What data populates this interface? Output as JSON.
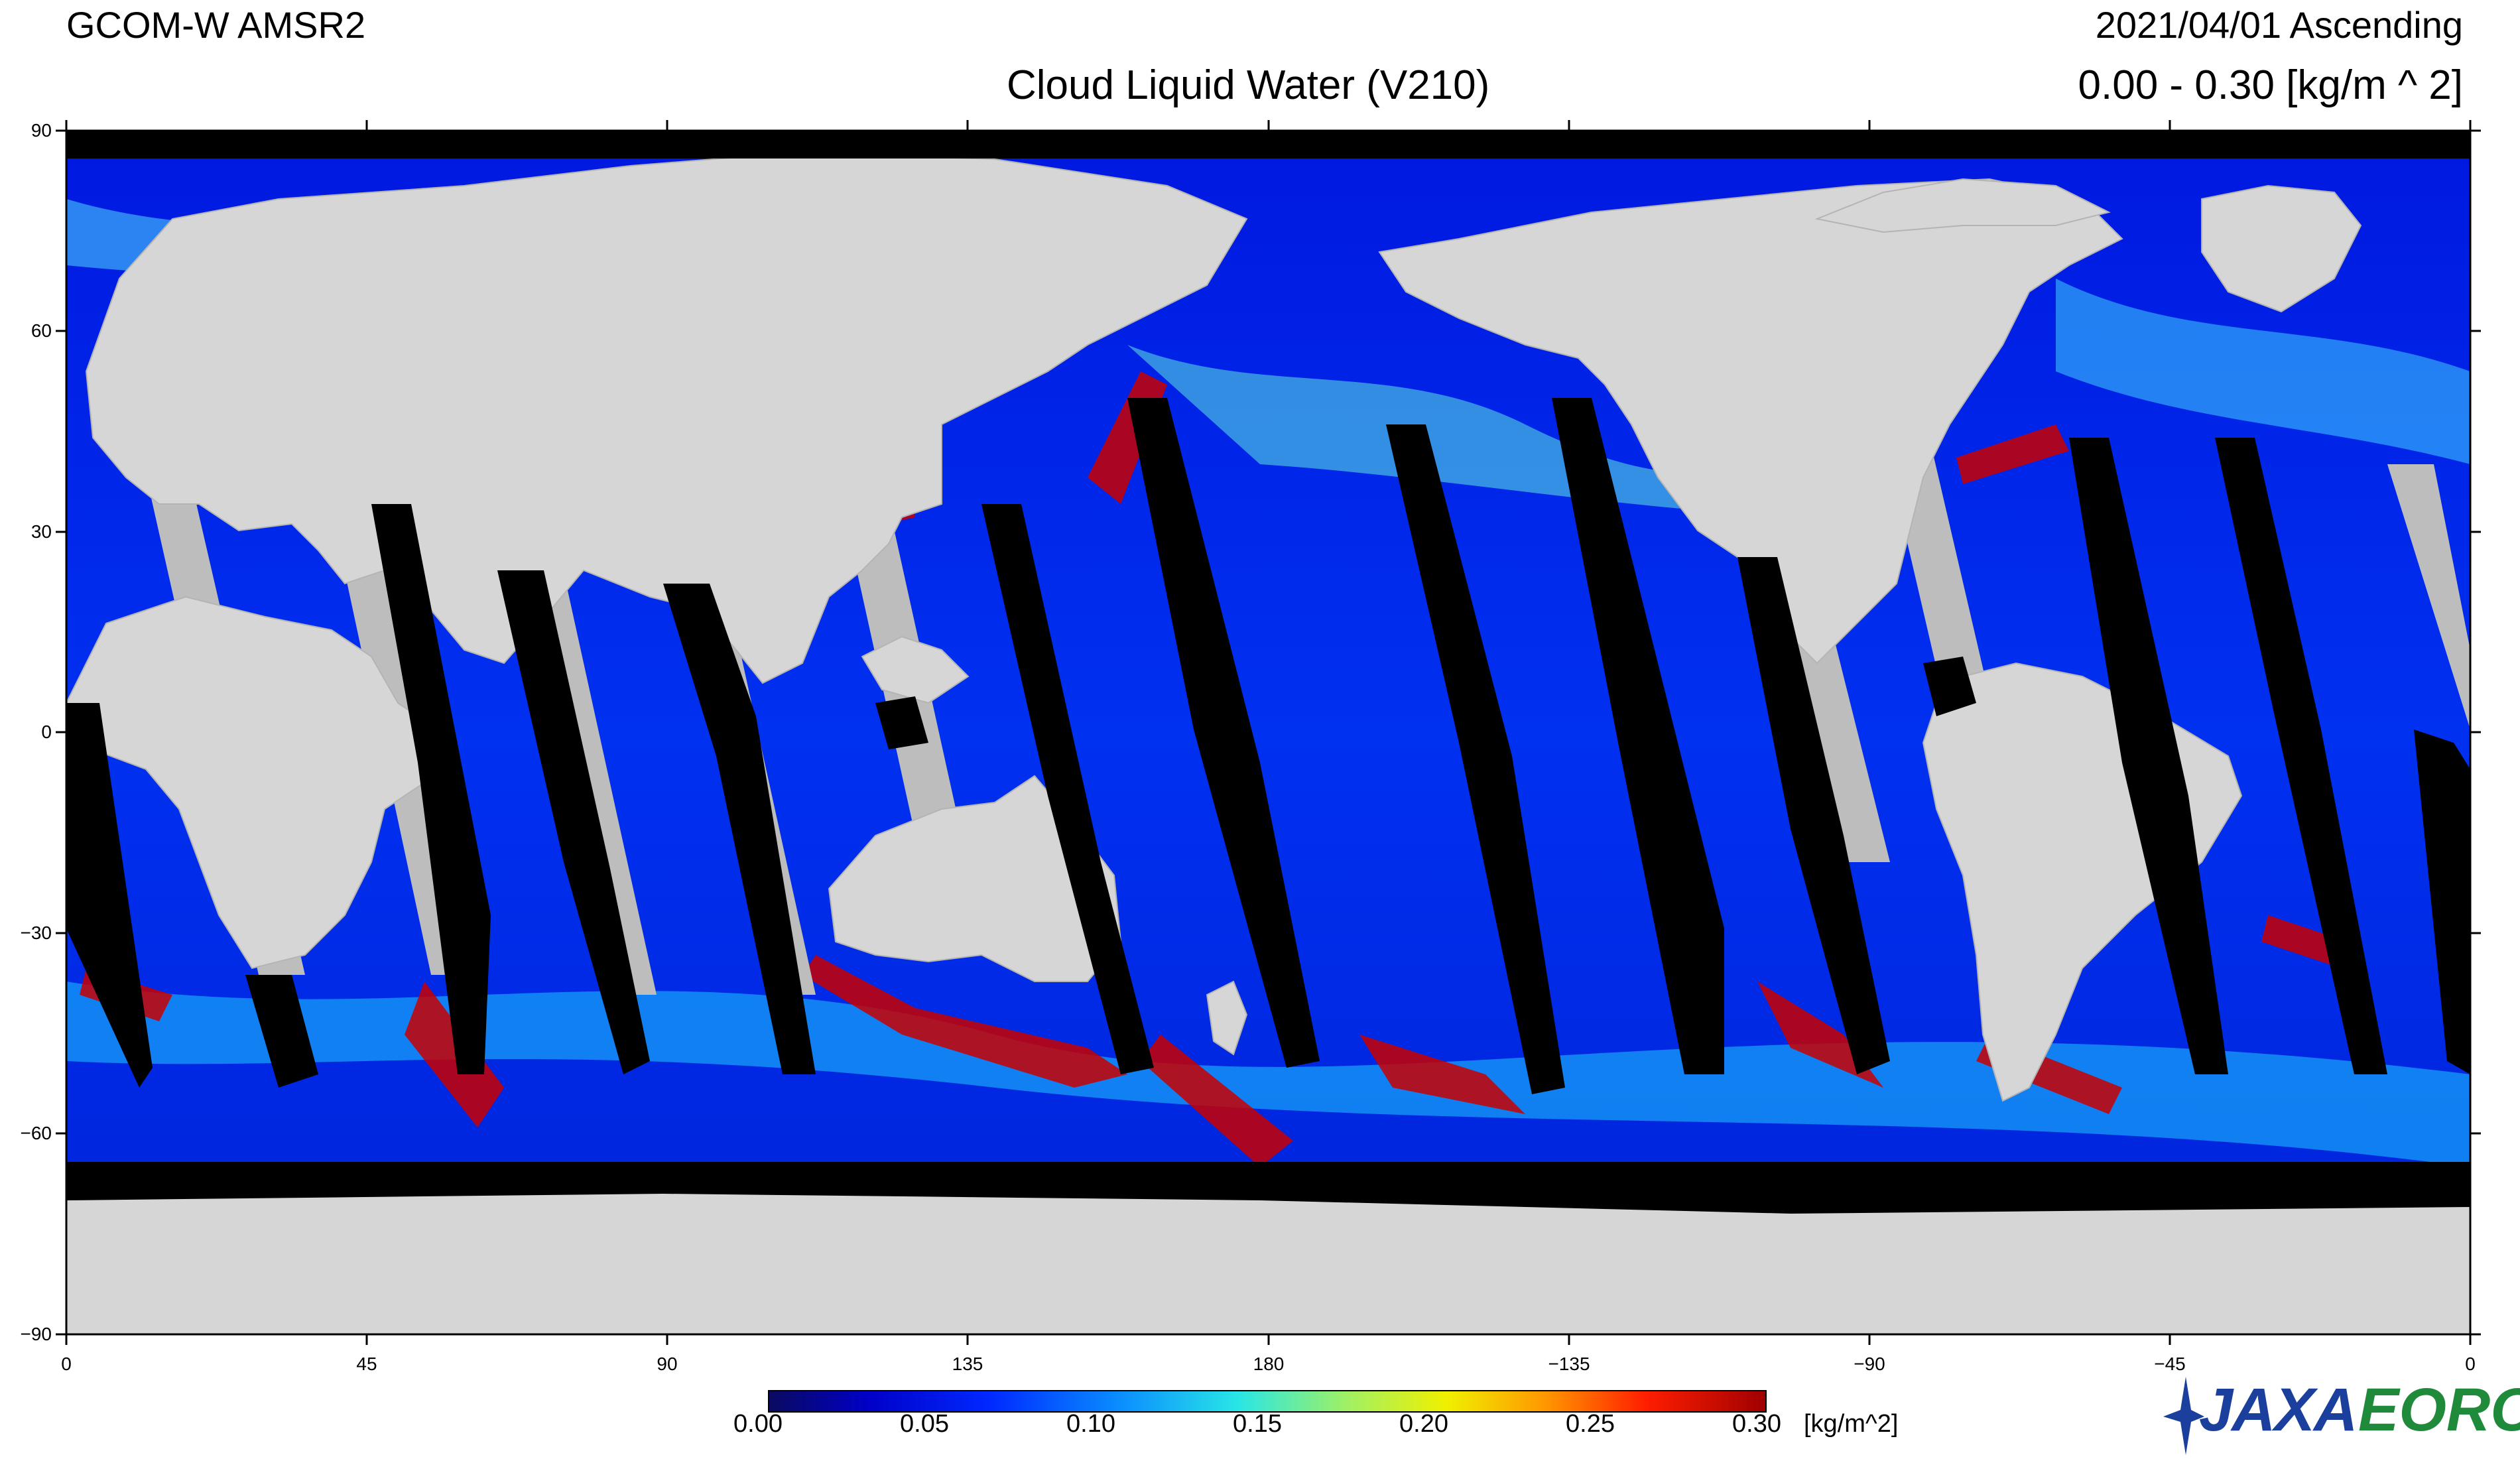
{
  "header": {
    "satellite": "GCOM-W  AMSR2",
    "date_pass": "2021/04/01  Ascending",
    "title": "Cloud Liquid Water (V210)",
    "range": "0.00  - 0.30 [kg/m ^ 2]"
  },
  "axes": {
    "lat_ticks": [
      "90",
      "60",
      "30",
      "0",
      "−30",
      "−60",
      "−90"
    ],
    "lon_ticks": [
      "0",
      "45",
      "90",
      "135",
      "180",
      "−135",
      "−90",
      "−45",
      "0"
    ]
  },
  "colorbar": {
    "labels": [
      "0.00",
      "0.05",
      "0.10",
      "0.15",
      "0.20",
      "0.25",
      "0.30"
    ],
    "unit": "[kg/m^2]"
  },
  "logo": {
    "org": "JAXA",
    "center": "EORC"
  },
  "colors": {
    "land": "#d6d6d6",
    "no_data": "#000000",
    "ocean_low": "#0000c8",
    "ocean_mid": "#0a8cff",
    "ocean_high": "#a00000",
    "swath_shadow": "#bdbdbd"
  }
}
